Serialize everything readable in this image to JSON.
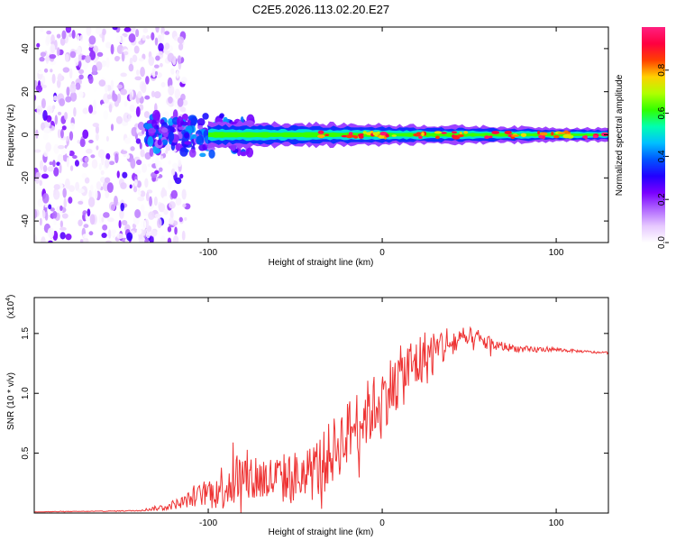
{
  "figure": {
    "title": "C2E5.2026.113.02.20.E27"
  },
  "chart_data": [
    {
      "type": "heatmap",
      "name": "spectrogram",
      "xlabel": "Height of straight line (km)",
      "ylabel": "Frequency (Hz)",
      "xlim": [
        -200,
        130
      ],
      "ylim": [
        -50,
        50
      ],
      "x_ticks": [
        -100,
        0,
        100
      ],
      "y_ticks": [
        -40,
        -20,
        0,
        20,
        40
      ],
      "colorbar": {
        "label": "Normalized spectral amplitude",
        "range": [
          0,
          1
        ],
        "ticks": [
          0.0,
          0.2,
          0.4,
          0.6,
          0.8
        ],
        "colormap": [
          "#ffffff",
          "#e6c8ff",
          "#b066ff",
          "#7a00ff",
          "#2200ff",
          "#0055ff",
          "#00c0ff",
          "#00ffb0",
          "#30ff00",
          "#b0ff00",
          "#ffd000",
          "#ff4000",
          "#ff0040",
          "#ff2080"
        ]
      },
      "regions": [
        {
          "label": "noise",
          "x_range": [
            -200,
            -120
          ],
          "freq_range": [
            -50,
            50
          ],
          "amplitude": 0.2
        },
        {
          "label": "onset",
          "x_range": [
            -135,
            -100
          ],
          "freq_range": [
            -8,
            8
          ],
          "amplitude": 0.35
        },
        {
          "label": "band",
          "x_range": [
            -100,
            130
          ],
          "center_freq": 0,
          "half_width_hz": [
            6,
            3
          ],
          "amplitude": 0.8
        }
      ]
    },
    {
      "type": "line",
      "name": "snr",
      "xlabel": "Height of straight line (km)",
      "ylabel": "SNR (10 * v/v)",
      "scale_label": "(x10",
      "scale_exponent": "4",
      "xlim": [
        -200,
        130
      ],
      "ylim": [
        0,
        18000
      ],
      "x_ticks": [
        -100,
        0,
        100
      ],
      "y_ticks": [
        5000,
        10000,
        15000
      ],
      "y_tick_labels": [
        "0.5",
        "1.0",
        "1.5"
      ],
      "series": [
        {
          "name": "SNR",
          "color": "#ee3333",
          "x": [
            -200,
            -160,
            -140,
            -125,
            -115,
            -105,
            -95,
            -85,
            -75,
            -65,
            -55,
            -45,
            -35,
            -25,
            -15,
            -5,
            5,
            15,
            25,
            35,
            45,
            55,
            65,
            75,
            85,
            95,
            105,
            115,
            125,
            130
          ],
          "y": [
            100,
            150,
            200,
            500,
            900,
            1500,
            2000,
            2800,
            3000,
            2800,
            2900,
            3000,
            4000,
            5800,
            7500,
            8800,
            10500,
            12000,
            13000,
            14000,
            14400,
            14500,
            14000,
            13800,
            13600,
            13700,
            13600,
            13500,
            13400,
            13400
          ],
          "noise_amplitude": [
            20,
            30,
            40,
            300,
            500,
            900,
            1800,
            2500,
            2300,
            2000,
            2200,
            2400,
            2700,
            2800,
            2800,
            2800,
            2700,
            2600,
            2400,
            1800,
            1200,
            900,
            500,
            300,
            300,
            200,
            150,
            100,
            100,
            100
          ]
        }
      ]
    }
  ]
}
